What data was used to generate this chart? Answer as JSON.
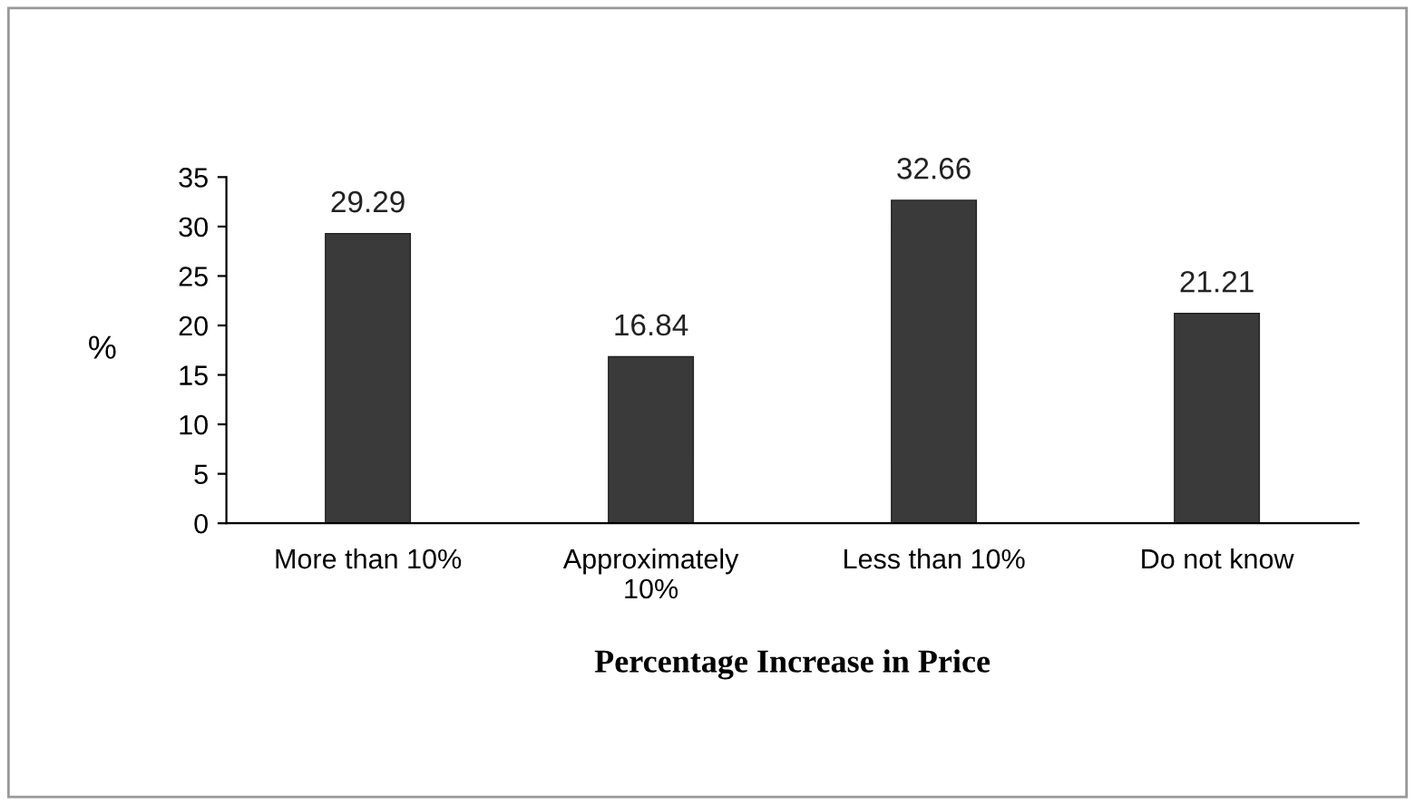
{
  "chart_data": {
    "type": "bar",
    "xlabel": "Percentage Increase in Price",
    "ylabel": "%",
    "categories": [
      "More than 10%",
      "Approximately\n10%",
      "Less than 10%",
      "Do not know"
    ],
    "values": [
      29.29,
      16.84,
      32.66,
      21.21
    ],
    "color": "#3a3a3a",
    "ylim": [
      0,
      35
    ],
    "yticks": [
      0,
      5,
      10,
      15,
      20,
      25,
      30,
      35
    ],
    "grid": false,
    "data_labels": true
  }
}
